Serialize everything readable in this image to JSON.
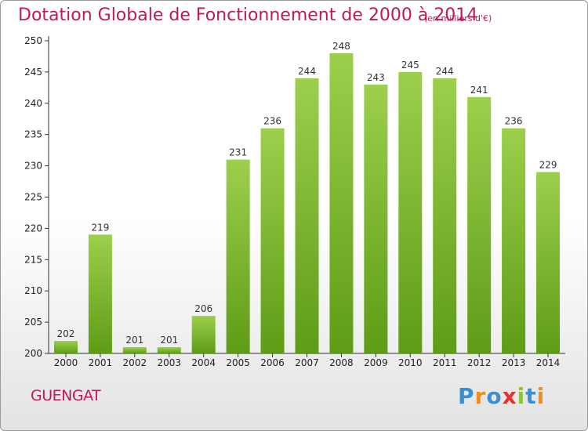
{
  "header": {
    "title": "Dotation Globale de Fonctionnement de 2000 à 2014",
    "unit": "(en milliers d'€)"
  },
  "footer": {
    "commune": "GUENGAT",
    "logo": "Proxiti"
  },
  "colors": {
    "title": "#c0185a",
    "bar_top": "#9ccf4c",
    "bar_bottom": "#5e9c16",
    "axis": "#333333",
    "grid": "#cfcfcf"
  },
  "chart_data": {
    "type": "bar",
    "title": "Dotation Globale de Fonctionnement de 2000 à 2014",
    "subtitle": "(en milliers d'€)",
    "xlabel": "",
    "ylabel": "",
    "categories": [
      "2000",
      "2001",
      "2002",
      "2003",
      "2004",
      "2005",
      "2006",
      "2007",
      "2008",
      "2009",
      "2010",
      "2011",
      "2012",
      "2013",
      "2014"
    ],
    "values": [
      202,
      219,
      201,
      201,
      206,
      231,
      236,
      244,
      248,
      243,
      245,
      244,
      241,
      236,
      229
    ],
    "ylim": [
      200,
      250
    ],
    "yticks": [
      200,
      205,
      210,
      215,
      220,
      225,
      230,
      235,
      240,
      245,
      250
    ],
    "grid": false,
    "data_labels": true
  }
}
